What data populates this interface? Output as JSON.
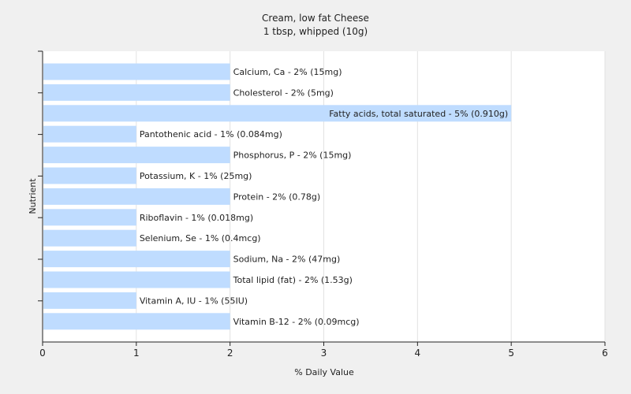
{
  "chart_data": {
    "type": "bar",
    "orientation": "horizontal",
    "title": "Cream, low fat Cheese",
    "subtitle": "1 tbsp, whipped (10g)",
    "xlabel": "% Daily Value",
    "ylabel": "Nutrient",
    "xlim": [
      0,
      6
    ],
    "xticks": [
      0,
      1,
      2,
      3,
      4,
      5,
      6
    ],
    "grid": "vertical",
    "bar_color": "#bfdcff",
    "label_position": "inside-right-for-max-else-outside",
    "categories": [
      "Calcium, Ca",
      "Cholesterol",
      "Fatty acids, total saturated",
      "Pantothenic acid",
      "Phosphorus, P",
      "Potassium, K",
      "Protein",
      "Riboflavin",
      "Selenium, Se",
      "Sodium, Na",
      "Total lipid (fat)",
      "Vitamin A, IU",
      "Vitamin B-12"
    ],
    "values": [
      2,
      2,
      5,
      1,
      2,
      1,
      2,
      1,
      1,
      2,
      2,
      1,
      2
    ],
    "labels": [
      "Calcium, Ca - 2% (15mg)",
      "Cholesterol - 2% (5mg)",
      "Fatty acids, total saturated - 5% (0.910g)",
      "Pantothenic acid - 1% (0.084mg)",
      "Phosphorus, P - 2% (15mg)",
      "Potassium, K - 1% (25mg)",
      "Protein - 2% (0.78g)",
      "Riboflavin - 1% (0.018mg)",
      "Selenium, Se - 1% (0.4mcg)",
      "Sodium, Na - 2% (47mg)",
      "Total lipid (fat) - 2% (1.53g)",
      "Vitamin A, IU - 1% (55IU)",
      "Vitamin B-12 - 2% (0.09mcg)"
    ]
  }
}
